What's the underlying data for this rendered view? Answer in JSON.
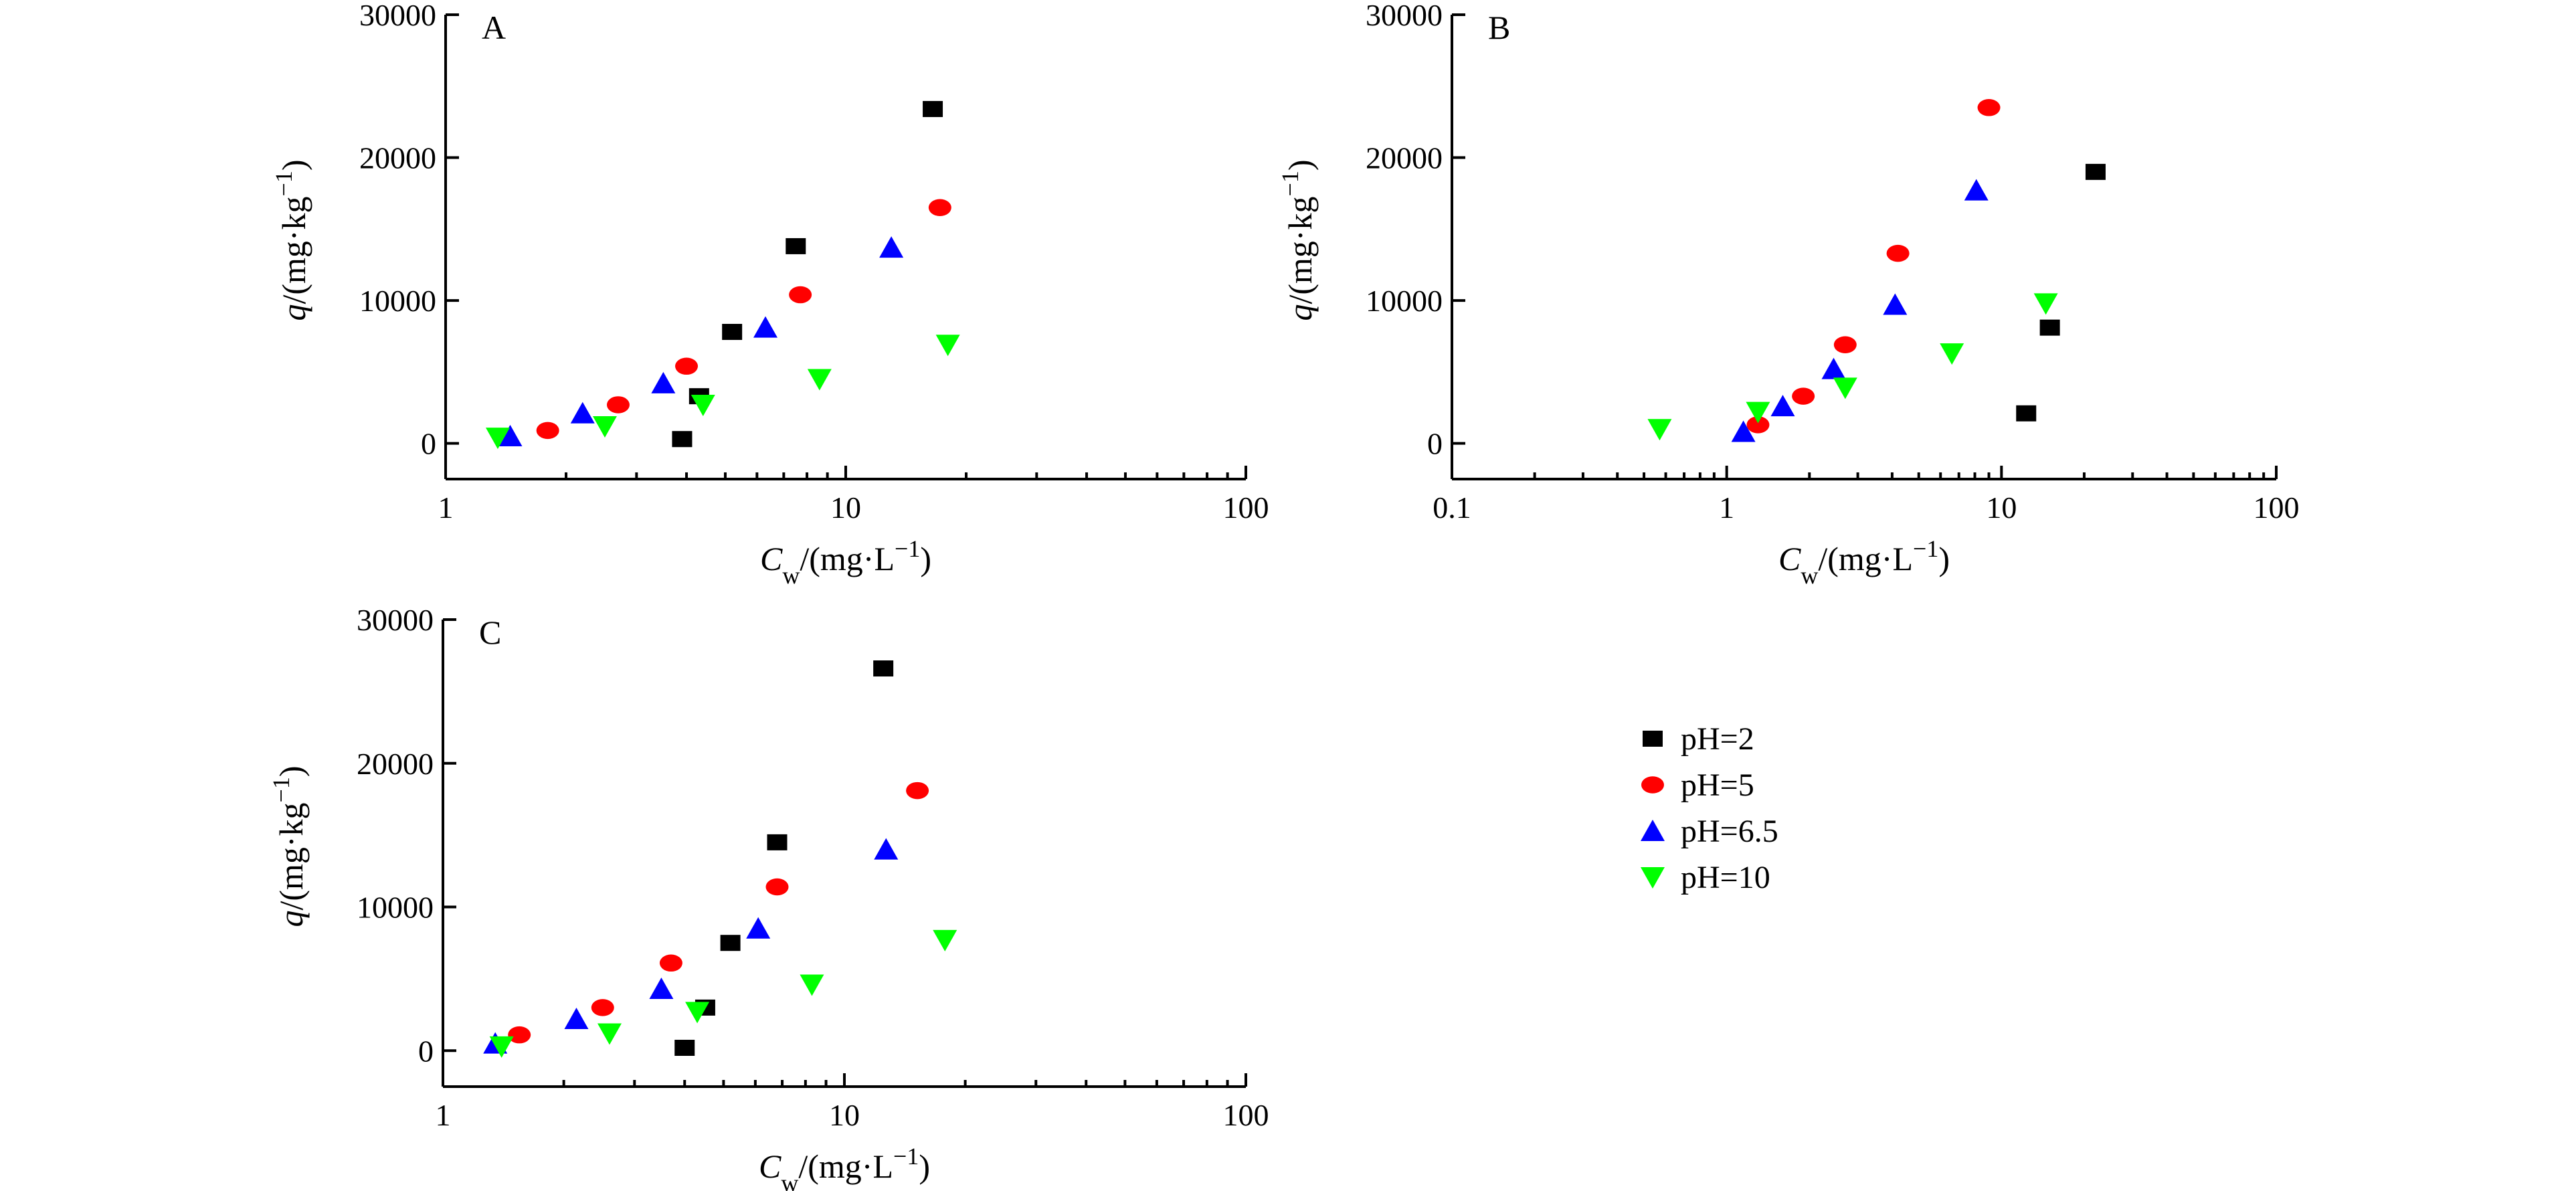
{
  "chart_data": [
    {
      "type": "scatter",
      "panel": "A",
      "xscale": "log",
      "xlim": [
        1,
        100
      ],
      "ylim": [
        -2500,
        30000
      ],
      "xticks": [
        1,
        10,
        100
      ],
      "xtick_labels": [
        "1",
        "10",
        "100"
      ],
      "yticks": [
        0,
        10000,
        20000,
        30000
      ],
      "ytick_labels": [
        "0",
        "10000",
        "20000",
        "30000"
      ],
      "xlabel": {
        "main": "C",
        "sub": "w",
        "rest": "/(mg·L",
        "sup": "−1",
        "end": ")"
      },
      "ylabel": {
        "main": "q",
        "rest": "/(mg·kg",
        "sup": "−1",
        "end": ")"
      },
      "series": [
        {
          "name": "pH=2",
          "color": "#000000",
          "marker": "square",
          "points": [
            [
              3.9,
              300
            ],
            [
              4.3,
              3300
            ],
            [
              5.2,
              7800
            ],
            [
              7.5,
              13800
            ],
            [
              16.5,
              23400
            ]
          ]
        },
        {
          "name": "pH=5",
          "color": "#ff0000",
          "marker": "circle",
          "points": [
            [
              1.8,
              900
            ],
            [
              2.7,
              2700
            ],
            [
              4.0,
              5400
            ],
            [
              7.7,
              10400
            ],
            [
              17.2,
              16500
            ]
          ]
        },
        {
          "name": "pH=6.5",
          "color": "#0000ff",
          "marker": "triangle-up",
          "points": [
            [
              1.45,
              500
            ],
            [
              2.2,
              2100
            ],
            [
              3.5,
              4200
            ],
            [
              6.3,
              8100
            ],
            [
              13.0,
              13700
            ]
          ]
        },
        {
          "name": "pH=10",
          "color": "#00ff00",
          "marker": "triangle-down",
          "points": [
            [
              1.35,
              400
            ],
            [
              2.5,
              1200
            ],
            [
              4.4,
              2700
            ],
            [
              8.6,
              4500
            ],
            [
              18.0,
              6900
            ]
          ]
        }
      ]
    },
    {
      "type": "scatter",
      "panel": "B",
      "xscale": "log",
      "xlim": [
        0.1,
        100
      ],
      "ylim": [
        -2500,
        30000
      ],
      "xticks": [
        0.1,
        1,
        10,
        100
      ],
      "xtick_labels": [
        "0.1",
        "1",
        "10",
        "100"
      ],
      "yticks": [
        0,
        10000,
        20000,
        30000
      ],
      "ytick_labels": [
        "0",
        "10000",
        "20000",
        "30000"
      ],
      "xlabel": {
        "main": "C",
        "sub": "w",
        "rest": "/(mg·L",
        "sup": "−1",
        "end": ")"
      },
      "ylabel": {
        "main": "q",
        "rest": "/(mg·kg",
        "sup": "−1",
        "end": ")"
      },
      "series": [
        {
          "name": "pH=2",
          "color": "#000000",
          "marker": "square",
          "points": [
            [
              12.3,
              2100
            ],
            [
              15.0,
              8100
            ],
            [
              22.0,
              19000
            ]
          ]
        },
        {
          "name": "pH=5",
          "color": "#ff0000",
          "marker": "circle",
          "points": [
            [
              1.3,
              1300
            ],
            [
              1.9,
              3300
            ],
            [
              2.7,
              6900
            ],
            [
              4.2,
              13300
            ],
            [
              9.0,
              23500
            ]
          ]
        },
        {
          "name": "pH=6.5",
          "color": "#0000ff",
          "marker": "triangle-up",
          "points": [
            [
              1.15,
              800
            ],
            [
              1.6,
              2600
            ],
            [
              2.45,
              5200
            ],
            [
              4.1,
              9700
            ],
            [
              8.1,
              17700
            ]
          ]
        },
        {
          "name": "pH=10",
          "color": "#00ff00",
          "marker": "triangle-down",
          "points": [
            [
              0.57,
              1000
            ],
            [
              1.3,
              2200
            ],
            [
              2.7,
              3900
            ],
            [
              6.6,
              6300
            ],
            [
              14.5,
              9800
            ]
          ]
        }
      ]
    },
    {
      "type": "scatter",
      "panel": "C",
      "xscale": "log",
      "xlim": [
        1,
        100
      ],
      "ylim": [
        -2500,
        30000
      ],
      "xticks": [
        1,
        10,
        100
      ],
      "xtick_labels": [
        "1",
        "10",
        "100"
      ],
      "yticks": [
        0,
        10000,
        20000,
        30000
      ],
      "ytick_labels": [
        "0",
        "10000",
        "20000",
        "30000"
      ],
      "xlabel": {
        "main": "C",
        "sub": "w",
        "rest": "/(mg·L",
        "sup": "−1",
        "end": ")"
      },
      "ylabel": {
        "main": "q",
        "rest": "/(mg·kg",
        "sup": "−1",
        "end": ")"
      },
      "series": [
        {
          "name": "pH=2",
          "color": "#000000",
          "marker": "square",
          "points": [
            [
              4.0,
              200
            ],
            [
              4.5,
              3000
            ],
            [
              5.2,
              7500
            ],
            [
              6.8,
              14500
            ],
            [
              12.5,
              26600
            ]
          ]
        },
        {
          "name": "pH=5",
          "color": "#ff0000",
          "marker": "circle",
          "points": [
            [
              1.55,
              1100
            ],
            [
              2.5,
              3000
            ],
            [
              3.7,
              6100
            ],
            [
              6.8,
              11400
            ],
            [
              15.2,
              18100
            ]
          ]
        },
        {
          "name": "pH=6.5",
          "color": "#0000ff",
          "marker": "triangle-up",
          "points": [
            [
              1.35,
              500
            ],
            [
              2.15,
              2200
            ],
            [
              3.5,
              4300
            ],
            [
              6.1,
              8500
            ],
            [
              12.7,
              14000
            ]
          ]
        },
        {
          "name": "pH=10",
          "color": "#00ff00",
          "marker": "triangle-down",
          "points": [
            [
              1.4,
              300
            ],
            [
              2.6,
              1200
            ],
            [
              4.3,
              2700
            ],
            [
              8.3,
              4600
            ],
            [
              17.8,
              7700
            ]
          ]
        }
      ]
    }
  ],
  "legend": {
    "position": "right of panel C",
    "items": [
      {
        "label": "pH=2",
        "color": "#000000",
        "marker": "square"
      },
      {
        "label": "pH=5",
        "color": "#ff0000",
        "marker": "circle"
      },
      {
        "label": "pH=6.5",
        "color": "#0000ff",
        "marker": "triangle-up"
      },
      {
        "label": "pH=10",
        "color": "#00ff00",
        "marker": "triangle-down"
      }
    ]
  }
}
